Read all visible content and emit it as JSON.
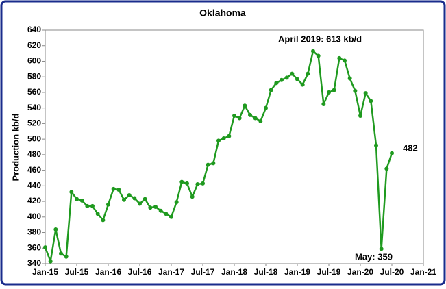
{
  "chart_data": {
    "type": "line",
    "title": "Oklahoma",
    "y_label": "Production kb/d",
    "x": [
      "2015-01",
      "2015-02",
      "2015-03",
      "2015-04",
      "2015-05",
      "2015-06",
      "2015-07",
      "2015-08",
      "2015-09",
      "2015-10",
      "2015-11",
      "2015-12",
      "2016-01",
      "2016-02",
      "2016-03",
      "2016-04",
      "2016-05",
      "2016-06",
      "2016-07",
      "2016-08",
      "2016-09",
      "2016-10",
      "2016-11",
      "2016-12",
      "2017-01",
      "2017-02",
      "2017-03",
      "2017-04",
      "2017-05",
      "2017-06",
      "2017-07",
      "2017-08",
      "2017-09",
      "2017-10",
      "2017-11",
      "2017-12",
      "2018-01",
      "2018-02",
      "2018-03",
      "2018-04",
      "2018-05",
      "2018-06",
      "2018-07",
      "2018-08",
      "2018-09",
      "2018-10",
      "2018-11",
      "2018-12",
      "2019-01",
      "2019-02",
      "2019-03",
      "2019-04",
      "2019-05",
      "2019-06",
      "2019-07",
      "2019-08",
      "2019-09",
      "2019-10",
      "2019-11",
      "2019-12",
      "2020-01",
      "2020-02",
      "2020-03",
      "2020-04",
      "2020-05",
      "2020-06",
      "2020-07"
    ],
    "series": [
      {
        "name": "Oklahoma",
        "color": "#1f9a1f",
        "values": [
          361,
          343,
          384,
          353,
          349,
          432,
          423,
          421,
          414,
          414,
          404,
          396,
          416,
          436,
          435,
          422,
          428,
          424,
          417,
          423,
          412,
          413,
          408,
          404,
          400,
          419,
          445,
          443,
          426,
          442,
          443,
          467,
          469,
          498,
          501,
          504,
          530,
          527,
          543,
          531,
          527,
          523,
          540,
          563,
          572,
          576,
          579,
          584,
          577,
          570,
          584,
          613,
          607,
          545,
          560,
          563,
          604,
          601,
          578,
          562,
          530,
          559,
          549,
          492,
          359,
          462,
          482
        ]
      }
    ],
    "xlim": [
      "2015-01",
      "2021-01"
    ],
    "xticks": [
      {
        "value": "2015-01",
        "label": "Jan-15"
      },
      {
        "value": "2015-07",
        "label": "Jul-15"
      },
      {
        "value": "2016-01",
        "label": "Jan-16"
      },
      {
        "value": "2016-07",
        "label": "Jul-16"
      },
      {
        "value": "2017-01",
        "label": "Jan-17"
      },
      {
        "value": "2017-07",
        "label": "Jul-17"
      },
      {
        "value": "2018-01",
        "label": "Jan-18"
      },
      {
        "value": "2018-07",
        "label": "Jul-18"
      },
      {
        "value": "2019-01",
        "label": "Jan-19"
      },
      {
        "value": "2019-07",
        "label": "Jul-19"
      },
      {
        "value": "2020-01",
        "label": "Jan-20"
      },
      {
        "value": "2020-07",
        "label": "Jul-20"
      },
      {
        "value": "2021-01",
        "label": "Jan-21"
      }
    ],
    "ylim": [
      340,
      640
    ],
    "yticks": [
      340,
      360,
      380,
      400,
      420,
      440,
      460,
      480,
      500,
      520,
      540,
      560,
      580,
      600,
      620,
      640
    ],
    "grid": false,
    "annotations": [
      "April 2019:  613 kb/d",
      "482",
      "May: 359"
    ]
  }
}
